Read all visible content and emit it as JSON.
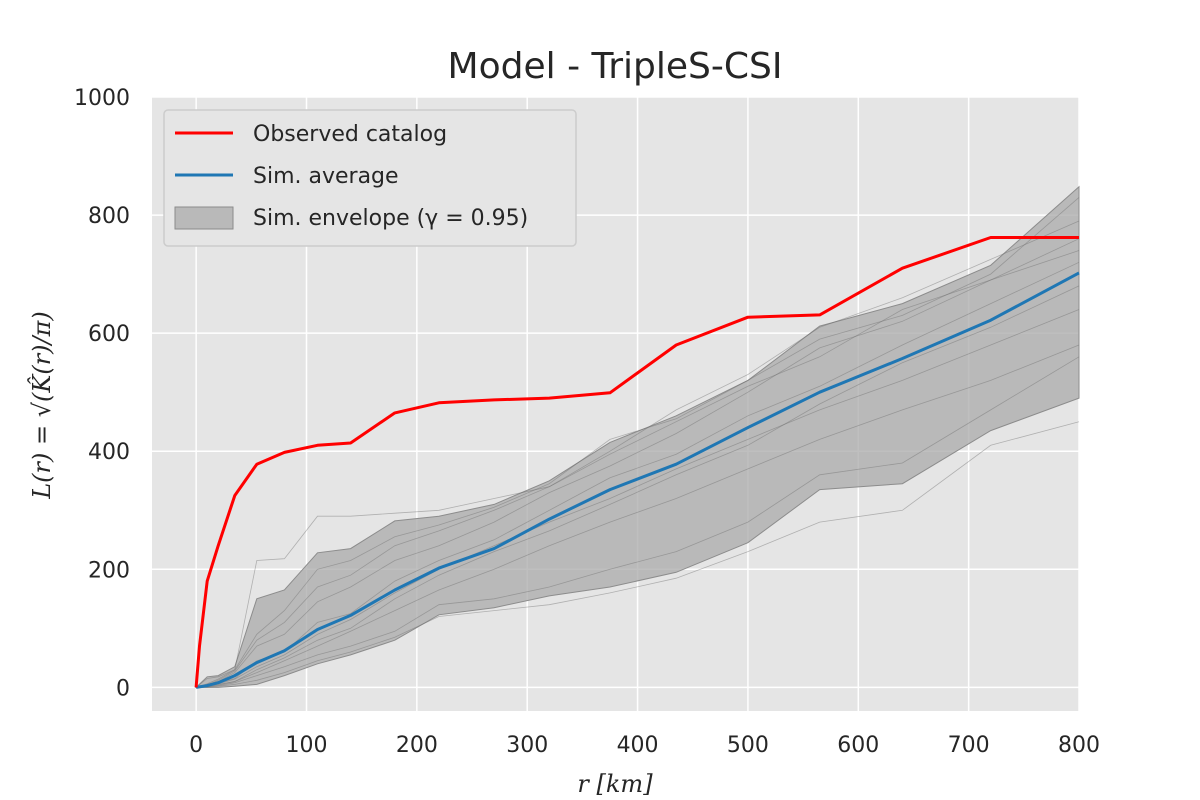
{
  "chart_data": {
    "type": "line",
    "title": "Model - TripleS-CSI",
    "xlabel": "r  [km]",
    "ylabel": "L(r) = √(K̂(r)/π)",
    "xlim": [
      -40,
      800
    ],
    "ylim": [
      -40,
      1000
    ],
    "xticks": [
      0,
      100,
      200,
      300,
      400,
      500,
      600,
      700,
      800
    ],
    "yticks": [
      0,
      200,
      400,
      600,
      800,
      1000
    ],
    "grid": true,
    "legend_position": "top-left",
    "legend": [
      "Observed catalog",
      "Sim. average",
      "Sim. envelope (γ = 0.95)"
    ],
    "series": [
      {
        "name": "Observed catalog",
        "color": "#ff0000",
        "x": [
          0,
          3,
          10,
          20,
          35,
          55,
          80,
          110,
          140,
          180,
          220,
          270,
          320,
          375,
          435,
          500,
          565,
          640,
          720,
          800
        ],
        "y": [
          0,
          70,
          180,
          240,
          325,
          378,
          398,
          410,
          414,
          465,
          482,
          487,
          490,
          499,
          580,
          627,
          631,
          710,
          762,
          762
        ]
      },
      {
        "name": "Sim. average",
        "color": "#1f77b4",
        "x": [
          0,
          10,
          20,
          35,
          55,
          80,
          110,
          140,
          180,
          220,
          270,
          320,
          375,
          435,
          500,
          565,
          640,
          720,
          800
        ],
        "y": [
          0,
          3,
          8,
          20,
          42,
          62,
          98,
          122,
          165,
          202,
          235,
          285,
          335,
          378,
          440,
          500,
          557,
          622,
          702
        ]
      }
    ],
    "envelope": {
      "name": "Sim. envelope (γ = 0.95)",
      "color": "#a9a9a9",
      "x": [
        0,
        10,
        20,
        35,
        55,
        80,
        110,
        140,
        180,
        220,
        270,
        320,
        375,
        435,
        500,
        565,
        640,
        720,
        800
      ],
      "upper": [
        0,
        18,
        20,
        35,
        150,
        165,
        228,
        235,
        282,
        290,
        310,
        350,
        415,
        460,
        520,
        612,
        650,
        715,
        848
      ],
      "lower": [
        0,
        0,
        0,
        2,
        5,
        20,
        40,
        55,
        80,
        123,
        135,
        155,
        170,
        195,
        245,
        335,
        345,
        435,
        490
      ]
    },
    "simulations": [
      {
        "x": [
          0,
          10,
          20,
          35,
          55,
          80,
          110,
          140,
          180,
          220,
          270,
          320,
          375,
          435,
          500,
          565,
          640,
          720,
          800
        ],
        "y": [
          0,
          15,
          18,
          30,
          215,
          218,
          290,
          290,
          295,
          300,
          320,
          340,
          395,
          450,
          510,
          560,
          640,
          690,
          740
        ]
      },
      {
        "x": [
          0,
          10,
          20,
          35,
          55,
          80,
          110,
          140,
          180,
          220,
          270,
          320,
          375,
          435,
          500,
          565,
          640,
          720,
          800
        ],
        "y": [
          0,
          5,
          10,
          25,
          70,
          90,
          145,
          170,
          215,
          240,
          280,
          330,
          375,
          430,
          500,
          575,
          620,
          690,
          760
        ]
      },
      {
        "x": [
          0,
          10,
          20,
          35,
          55,
          80,
          110,
          140,
          180,
          220,
          270,
          320,
          375,
          435,
          500,
          565,
          640,
          720,
          800
        ],
        "y": [
          0,
          2,
          5,
          10,
          30,
          50,
          80,
          100,
          150,
          190,
          230,
          265,
          310,
          360,
          410,
          480,
          550,
          610,
          680
        ]
      },
      {
        "x": [
          0,
          10,
          20,
          35,
          55,
          80,
          110,
          140,
          180,
          220,
          270,
          320,
          375,
          435,
          500,
          565,
          640,
          720,
          800
        ],
        "y": [
          0,
          3,
          8,
          15,
          45,
          60,
          110,
          125,
          180,
          215,
          250,
          300,
          355,
          395,
          460,
          510,
          580,
          650,
          720
        ]
      },
      {
        "x": [
          0,
          10,
          20,
          35,
          55,
          80,
          110,
          140,
          180,
          220,
          270,
          320,
          375,
          435,
          500,
          565,
          640,
          720,
          800
        ],
        "y": [
          0,
          1,
          3,
          8,
          20,
          35,
          55,
          70,
          95,
          140,
          150,
          170,
          200,
          230,
          280,
          360,
          380,
          470,
          560
        ]
      },
      {
        "x": [
          0,
          10,
          20,
          35,
          55,
          80,
          110,
          140,
          180,
          220,
          270,
          320,
          375,
          435,
          500,
          565,
          640,
          720,
          800
        ],
        "y": [
          0,
          0,
          2,
          5,
          12,
          25,
          45,
          60,
          85,
          120,
          130,
          140,
          160,
          185,
          230,
          280,
          300,
          410,
          450
        ]
      },
      {
        "x": [
          0,
          10,
          20,
          35,
          55,
          80,
          110,
          140,
          180,
          220,
          270,
          320,
          375,
          435,
          500,
          565,
          640,
          720,
          800
        ],
        "y": [
          0,
          4,
          12,
          28,
          80,
          110,
          170,
          190,
          240,
          265,
          300,
          340,
          400,
          470,
          530,
          610,
          660,
          725,
          790
        ]
      },
      {
        "x": [
          0,
          10,
          20,
          35,
          55,
          80,
          110,
          140,
          180,
          220,
          270,
          320,
          375,
          435,
          500,
          565,
          640,
          720,
          800
        ],
        "y": [
          0,
          2,
          6,
          14,
          35,
          55,
          90,
          115,
          160,
          200,
          240,
          280,
          320,
          370,
          420,
          470,
          520,
          580,
          640
        ]
      },
      {
        "x": [
          0,
          10,
          20,
          35,
          55,
          80,
          110,
          140,
          180,
          220,
          270,
          320,
          375,
          435,
          500,
          565,
          640,
          720,
          800
        ],
        "y": [
          0,
          1,
          4,
          10,
          25,
          45,
          70,
          95,
          130,
          165,
          200,
          240,
          280,
          320,
          370,
          420,
          470,
          520,
          580
        ]
      },
      {
        "x": [
          0,
          10,
          20,
          35,
          55,
          80,
          110,
          140,
          180,
          220,
          270,
          320,
          375,
          435,
          500,
          565,
          640,
          720,
          800
        ],
        "y": [
          0,
          6,
          14,
          30,
          90,
          130,
          200,
          215,
          255,
          275,
          305,
          345,
          420,
          455,
          520,
          590,
          630,
          700,
          830
        ]
      }
    ]
  }
}
